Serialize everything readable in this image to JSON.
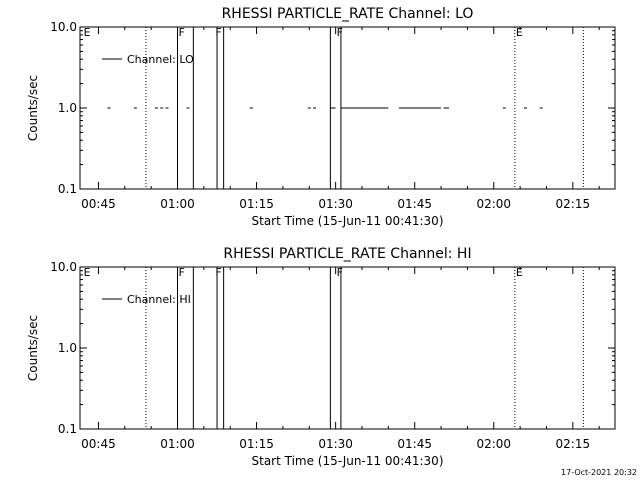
{
  "chart_data": [
    {
      "type": "line",
      "title": "RHESSI PARTICLE_RATE Channel: LO",
      "xlabel": "Start Time (15-Jun-11 00:41:30)",
      "ylabel": "Counts/sec",
      "yscale": "log",
      "ylim": [
        0.1,
        10.0
      ],
      "yticks": [
        "0.1",
        "1.0",
        "10.0"
      ],
      "xlim": [
        "00:41:30",
        "02:23:00"
      ],
      "xticks": [
        "00:45",
        "01:00",
        "01:15",
        "01:30",
        "01:45",
        "02:00",
        "02:15"
      ],
      "legend": {
        "position": "top-left",
        "entries": [
          "Channel: LO"
        ]
      },
      "series": [
        {
          "name": "Channel: LO",
          "points": [
            {
              "x": "00:47:00",
              "y": 1.0
            },
            {
              "x": "00:52:00",
              "y": 1.0
            },
            {
              "x": "00:56:00",
              "y": 1.0
            },
            {
              "x": "00:57:00",
              "y": 1.0
            },
            {
              "x": "00:58:00",
              "y": 1.0
            },
            {
              "x": "01:02:00",
              "y": 1.0
            },
            {
              "x": "01:14:00",
              "y": 1.0
            },
            {
              "x": "01:25:00",
              "y": 1.0
            },
            {
              "x": "01:26:00",
              "y": 1.0
            },
            {
              "x": "02:02:00",
              "y": 1.0
            },
            {
              "x": "02:06:00",
              "y": 1.0
            },
            {
              "x": "02:09:00",
              "y": 1.0
            }
          ],
          "segments": [
            {
              "x0": "01:29:00",
              "x1": "01:30:00",
              "y": 1.0
            },
            {
              "x0": "01:31:00",
              "x1": "01:40:00",
              "y": 1.0
            },
            {
              "x0": "01:42:00",
              "x1": "01:50:00",
              "y": 1.0
            },
            {
              "x0": "01:50:30",
              "x1": "01:51:30",
              "y": 1.0
            }
          ]
        }
      ],
      "flags": [
        {
          "label": "E",
          "x": "00:42:00"
        },
        {
          "label": "F",
          "x": "01:00:00"
        },
        {
          "label": "F",
          "x": "01:07:00"
        },
        {
          "label": "F",
          "x": "01:30:00"
        },
        {
          "label": "E",
          "x": "02:04:00"
        }
      ],
      "vlines": [
        {
          "x": "00:54:00",
          "style": "dotted"
        },
        {
          "x": "01:00:00",
          "style": "solid"
        },
        {
          "x": "01:03:00",
          "style": "solid"
        },
        {
          "x": "01:07:30",
          "style": "solid"
        },
        {
          "x": "01:08:45",
          "style": "solid"
        },
        {
          "x": "01:29:00",
          "style": "solid"
        },
        {
          "x": "01:31:00",
          "style": "solid"
        },
        {
          "x": "02:04:00",
          "style": "dotted"
        },
        {
          "x": "02:17:00",
          "style": "dotted"
        }
      ]
    },
    {
      "type": "line",
      "title": "RHESSI PARTICLE_RATE Channel: HI",
      "xlabel": "Start Time (15-Jun-11 00:41:30)",
      "ylabel": "Counts/sec",
      "yscale": "log",
      "ylim": [
        0.1,
        10.0
      ],
      "yticks": [
        "0.1",
        "1.0",
        "10.0"
      ],
      "xlim": [
        "00:41:30",
        "02:23:00"
      ],
      "xticks": [
        "00:45",
        "01:00",
        "01:15",
        "01:30",
        "01:45",
        "02:00",
        "02:15"
      ],
      "legend": {
        "position": "top-left",
        "entries": [
          "Channel: HI"
        ]
      },
      "series": [
        {
          "name": "Channel: HI",
          "points": [],
          "segments": []
        }
      ],
      "flags": [
        {
          "label": "E",
          "x": "00:42:00"
        },
        {
          "label": "F",
          "x": "01:00:00"
        },
        {
          "label": "F",
          "x": "01:07:00"
        },
        {
          "label": "F",
          "x": "01:30:00"
        },
        {
          "label": "E",
          "x": "02:04:00"
        }
      ],
      "vlines": [
        {
          "x": "00:54:00",
          "style": "dotted"
        },
        {
          "x": "01:00:00",
          "style": "solid"
        },
        {
          "x": "01:03:00",
          "style": "solid"
        },
        {
          "x": "01:07:30",
          "style": "solid"
        },
        {
          "x": "01:08:45",
          "style": "solid"
        },
        {
          "x": "01:29:00",
          "style": "solid"
        },
        {
          "x": "01:31:00",
          "style": "solid"
        },
        {
          "x": "02:04:00",
          "style": "dotted"
        },
        {
          "x": "02:17:00",
          "style": "dotted"
        }
      ]
    }
  ],
  "footer": {
    "timestamp": "17-Oct-2021 20:32"
  }
}
